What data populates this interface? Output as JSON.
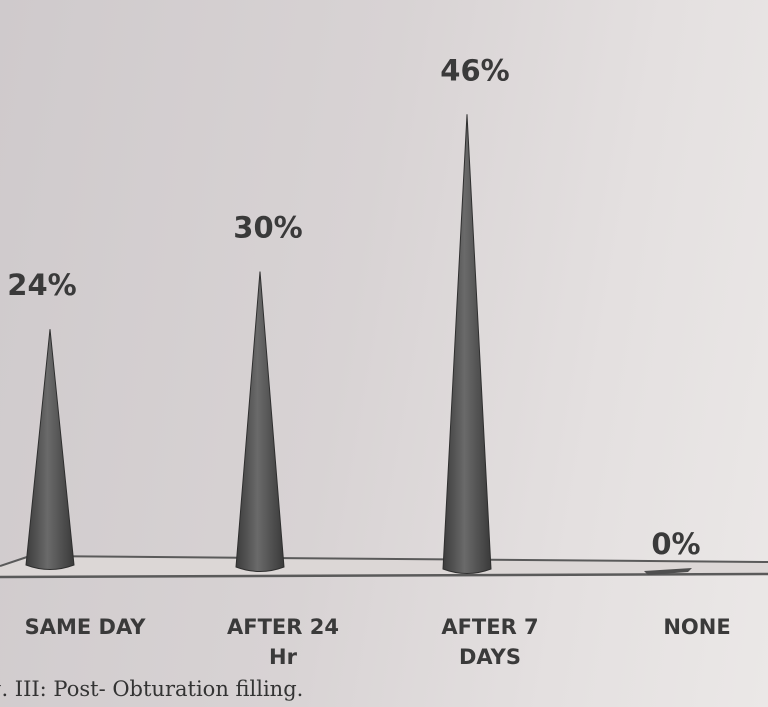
{
  "chart_data": {
    "type": "bar",
    "categories": [
      [
        "SAME DAY"
      ],
      [
        "AFTER 24",
        "Hr"
      ],
      [
        "AFTER 7",
        "DAYS"
      ],
      [
        "NONE"
      ]
    ],
    "values": [
      24,
      30,
      46,
      0
    ],
    "value_labels": [
      "24%",
      "30%",
      "46%",
      "0%"
    ],
    "ylim": [
      0,
      50
    ],
    "grid": false,
    "legend": "none",
    "bar_shape": "cone",
    "bar_color": "#4f4f4f"
  },
  "caption": "g. III: Post- Obturation filling."
}
